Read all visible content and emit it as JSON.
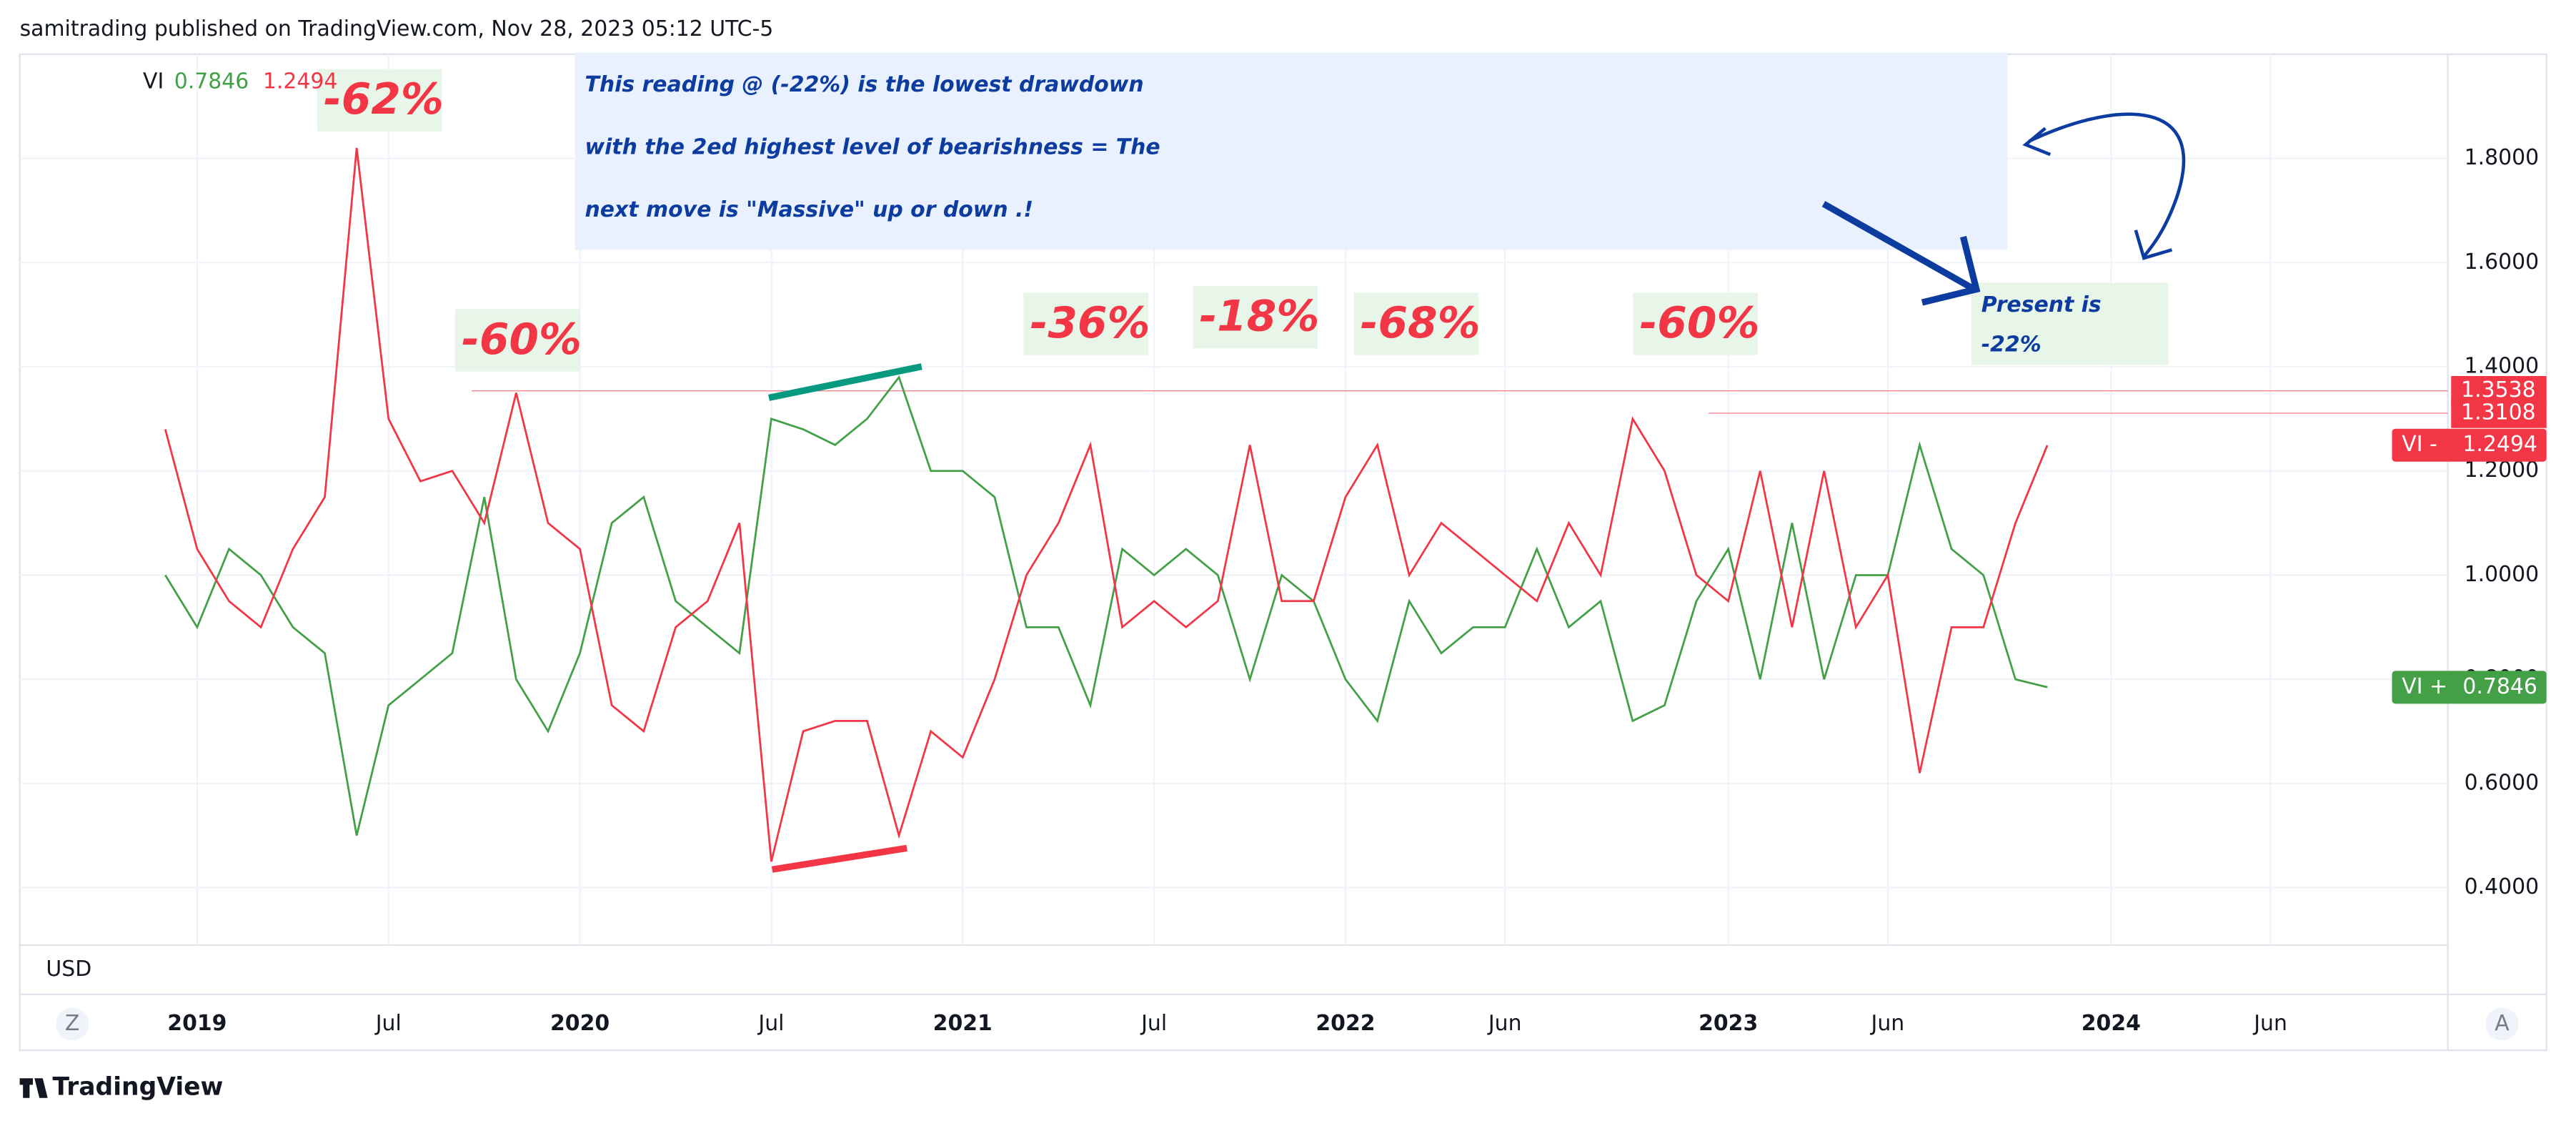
{
  "header": "samitrading published on TradingView.com, Nov 28, 2023 05:12 UTC-5",
  "footer": "TradingView",
  "chart_data": {
    "type": "line",
    "indicator": "VI",
    "x": [
      "2018-12",
      "2019-01",
      "2019-02",
      "2019-03",
      "2019-04",
      "2019-05",
      "2019-06",
      "2019-07",
      "2019-08",
      "2019-09",
      "2019-10",
      "2019-11",
      "2019-12",
      "2020-01",
      "2020-02",
      "2020-03",
      "2020-04",
      "2020-05",
      "2020-06",
      "2020-07",
      "2020-08",
      "2020-09",
      "2020-10",
      "2020-11",
      "2020-12",
      "2021-01",
      "2021-02",
      "2021-03",
      "2021-04",
      "2021-05",
      "2021-06",
      "2021-07",
      "2021-08",
      "2021-09",
      "2021-10",
      "2021-11",
      "2021-12",
      "2022-01",
      "2022-02",
      "2022-03",
      "2022-04",
      "2022-05",
      "2022-06",
      "2022-07",
      "2022-08",
      "2022-09",
      "2022-10",
      "2022-11",
      "2022-12",
      "2023-01",
      "2023-02",
      "2023-03",
      "2023-04",
      "2023-05",
      "2023-06",
      "2023-07",
      "2023-08",
      "2023-09",
      "2023-10",
      "2023-11"
    ],
    "series": [
      {
        "name": "VI +",
        "color": "#43a047",
        "values": [
          1.0,
          0.9,
          1.05,
          1.0,
          0.9,
          0.85,
          0.5,
          0.75,
          0.8,
          0.85,
          1.15,
          0.8,
          0.7,
          0.85,
          1.1,
          1.15,
          0.95,
          0.9,
          0.85,
          1.3,
          1.28,
          1.25,
          1.3,
          1.38,
          1.2,
          1.2,
          1.15,
          0.9,
          0.9,
          0.75,
          1.05,
          1.0,
          1.05,
          1.0,
          0.8,
          1.0,
          0.95,
          0.8,
          0.72,
          0.95,
          0.85,
          0.9,
          0.9,
          1.05,
          0.9,
          0.95,
          0.72,
          0.75,
          0.95,
          1.05,
          0.8,
          1.1,
          0.8,
          1.0,
          1.0,
          1.25,
          1.05,
          1.0,
          0.8,
          0.7846
        ]
      },
      {
        "name": "VI -",
        "color": "#f23645",
        "values": [
          1.28,
          1.05,
          0.95,
          0.9,
          1.05,
          1.15,
          1.82,
          1.3,
          1.18,
          1.2,
          1.1,
          1.35,
          1.1,
          1.05,
          0.75,
          0.7,
          0.9,
          0.95,
          1.1,
          0.45,
          0.7,
          0.72,
          0.72,
          0.5,
          0.7,
          0.65,
          0.8,
          1.0,
          1.1,
          1.25,
          0.9,
          0.95,
          0.9,
          0.95,
          1.25,
          0.95,
          0.95,
          1.15,
          1.25,
          1.0,
          1.1,
          1.05,
          1.0,
          0.95,
          1.1,
          1.0,
          1.3,
          1.2,
          1.0,
          0.95,
          1.2,
          0.9,
          1.2,
          0.9,
          1.0,
          0.62,
          0.9,
          0.9,
          1.1,
          1.2494
        ]
      }
    ],
    "reference_lines": [
      1.3538,
      1.3108
    ],
    "ylim": [
      0.3,
      2.0
    ],
    "yticks": [
      {
        "value": 0.4,
        "label": "0.4000"
      },
      {
        "value": 0.6,
        "label": "0.6000"
      },
      {
        "value": 0.8,
        "label": "0.8000"
      },
      {
        "value": 1.0,
        "label": "1.0000"
      },
      {
        "value": 1.2,
        "label": "1.2000"
      },
      {
        "value": 1.4,
        "label": "1.4000"
      },
      {
        "value": 1.6,
        "label": "1.6000"
      },
      {
        "value": 1.8,
        "label": "1.8000"
      }
    ],
    "xticks": [
      {
        "value": "2019-01",
        "label": "2019"
      },
      {
        "value": "2019-07",
        "label": "Jul"
      },
      {
        "value": "2020-01",
        "label": "2020"
      },
      {
        "value": "2020-07",
        "label": "Jul"
      },
      {
        "value": "2021-01",
        "label": "2021"
      },
      {
        "value": "2021-07",
        "label": "Jul"
      },
      {
        "value": "2022-01",
        "label": "2022"
      },
      {
        "value": "2022-06",
        "label": "Jun"
      },
      {
        "value": "2023-01",
        "label": "2023"
      },
      {
        "value": "2023-06",
        "label": "Jun"
      },
      {
        "value": "2024-01",
        "label": "2024"
      },
      {
        "value": "2024-06",
        "label": "Jun"
      }
    ],
    "grid": true,
    "currency": "USD",
    "annotations": {
      "main": [
        "This reading @ (-22%) is the lowest drawdown",
        "with the 2ed highest level of bearishness = The",
        "next move is \"Massive\" up or down .!"
      ],
      "present": [
        "Present is",
        "-22%"
      ],
      "drawdowns": [
        "-62%",
        "-60%",
        "-36%",
        "-18%",
        "-68%",
        "-60%"
      ]
    }
  }
}
